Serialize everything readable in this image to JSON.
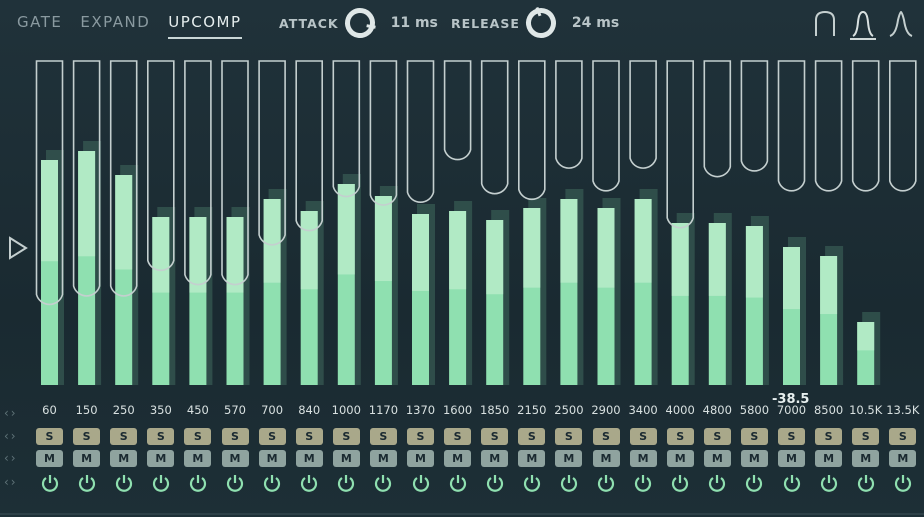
{
  "modes": [
    "GATE",
    "EXPAND",
    "UPCOMP"
  ],
  "active_mode": "UPCOMP",
  "attack": {
    "label": "ATTACK",
    "value": "11 ms"
  },
  "release": {
    "label": "RELEASE",
    "value": "24 ms"
  },
  "curve_shapes": [
    "curve-shape-1-icon",
    "curve-shape-2-icon",
    "curve-shape-3-icon"
  ],
  "readout": "-38.5",
  "solo_label": "S",
  "mute_label": "M",
  "colors": {
    "accent": "#8fe0b0",
    "bar_light": "#c8f0d4",
    "track": "#c4cfcf",
    "solo": "#a9a88a",
    "mute": "#8fa39f"
  },
  "bands": [
    {
      "freq": "60",
      "level": 0.75,
      "threshold": 0.87
    },
    {
      "freq": "150",
      "level": 0.78,
      "threshold": 0.84
    },
    {
      "freq": "250",
      "level": 0.7,
      "threshold": 0.84
    },
    {
      "freq": "350",
      "level": 0.56,
      "threshold": 0.75
    },
    {
      "freq": "450",
      "level": 0.56,
      "threshold": 0.8
    },
    {
      "freq": "570",
      "level": 0.56,
      "threshold": 0.8
    },
    {
      "freq": "700",
      "level": 0.62,
      "threshold": 0.66
    },
    {
      "freq": "840",
      "level": 0.58,
      "threshold": 0.61
    },
    {
      "freq": "1000",
      "level": 0.67,
      "threshold": 0.49
    },
    {
      "freq": "1170",
      "level": 0.63,
      "threshold": 0.52
    },
    {
      "freq": "1370",
      "level": 0.57,
      "threshold": 0.51
    },
    {
      "freq": "1600",
      "level": 0.58,
      "threshold": 0.36
    },
    {
      "freq": "1850",
      "level": 0.55,
      "threshold": 0.48
    },
    {
      "freq": "2150",
      "level": 0.59,
      "threshold": 0.5
    },
    {
      "freq": "2500",
      "level": 0.62,
      "threshold": 0.39
    },
    {
      "freq": "2900",
      "level": 0.59,
      "threshold": 0.47
    },
    {
      "freq": "3400",
      "level": 0.62,
      "threshold": 0.39
    },
    {
      "freq": "4000",
      "level": 0.54,
      "threshold": 0.6
    },
    {
      "freq": "4800",
      "level": 0.54,
      "threshold": 0.42
    },
    {
      "freq": "5800",
      "level": 0.53,
      "threshold": 0.4
    },
    {
      "freq": "7000",
      "level": 0.46,
      "threshold": 0.47
    },
    {
      "freq": "8500",
      "level": 0.43,
      "threshold": 0.47
    },
    {
      "freq": "10.5K",
      "level": 0.21,
      "threshold": 0.47
    },
    {
      "freq": "13.5K",
      "level": 0.0,
      "threshold": 0.47
    }
  ]
}
